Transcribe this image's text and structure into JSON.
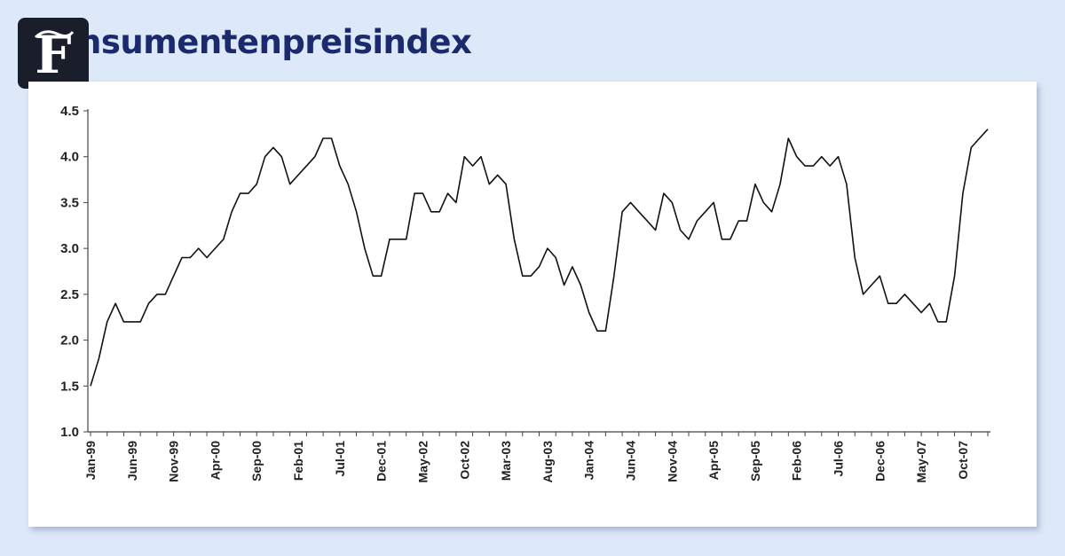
{
  "page": {
    "title": "nsumentenpreisindex"
  },
  "chart_data": {
    "type": "line",
    "title": "nsumentenpreisindex",
    "xlabel": "",
    "ylabel": "",
    "ylim": [
      1.0,
      4.5
    ],
    "yticks": [
      "1.0",
      "1.5",
      "2.0",
      "2.5",
      "3.0",
      "3.5",
      "4.0",
      "4.5"
    ],
    "xtick_labels": [
      "Jan-99",
      "Jun-99",
      "Nov-99",
      "Apr-00",
      "Sep-00",
      "Feb-01",
      "Jul-01",
      "Dec-01",
      "May-02",
      "Oct-02",
      "Mar-03",
      "Aug-03",
      "Jan-04",
      "Jun-04",
      "Nov-04",
      "Apr-05",
      "Sep-05",
      "Feb-06",
      "Jul-06",
      "Dec-06",
      "May-07",
      "Oct-07"
    ],
    "x_start": "Jan-99",
    "x_end": "Dec-07",
    "values": [
      1.5,
      1.8,
      2.2,
      2.4,
      2.2,
      2.2,
      2.2,
      2.4,
      2.5,
      2.5,
      2.7,
      2.9,
      2.9,
      3.0,
      2.9,
      3.0,
      3.1,
      3.4,
      3.6,
      3.6,
      3.7,
      4.0,
      4.1,
      4.0,
      3.7,
      3.8,
      3.9,
      4.0,
      4.2,
      4.2,
      3.9,
      3.7,
      3.4,
      3.0,
      2.7,
      2.7,
      3.1,
      3.1,
      3.1,
      3.6,
      3.6,
      3.4,
      3.4,
      3.6,
      3.5,
      4.0,
      3.9,
      4.0,
      3.7,
      3.8,
      3.7,
      3.1,
      2.7,
      2.7,
      2.8,
      3.0,
      2.9,
      2.6,
      2.8,
      2.6,
      2.3,
      2.1,
      2.1,
      2.7,
      3.4,
      3.5,
      3.4,
      3.3,
      3.2,
      3.6,
      3.5,
      3.2,
      3.1,
      3.3,
      3.4,
      3.5,
      3.1,
      3.1,
      3.3,
      3.3,
      3.7,
      3.5,
      3.4,
      3.7,
      4.2,
      4.0,
      3.9,
      3.9,
      4.0,
      3.9,
      4.0,
      3.7,
      2.9,
      2.5,
      2.6,
      2.7,
      2.4,
      2.4,
      2.5,
      2.4,
      2.3,
      2.4,
      2.2,
      2.2,
      2.7,
      3.6,
      4.1,
      4.2,
      4.3
    ],
    "line_color": "#111111",
    "grid": false,
    "legend": "none"
  }
}
